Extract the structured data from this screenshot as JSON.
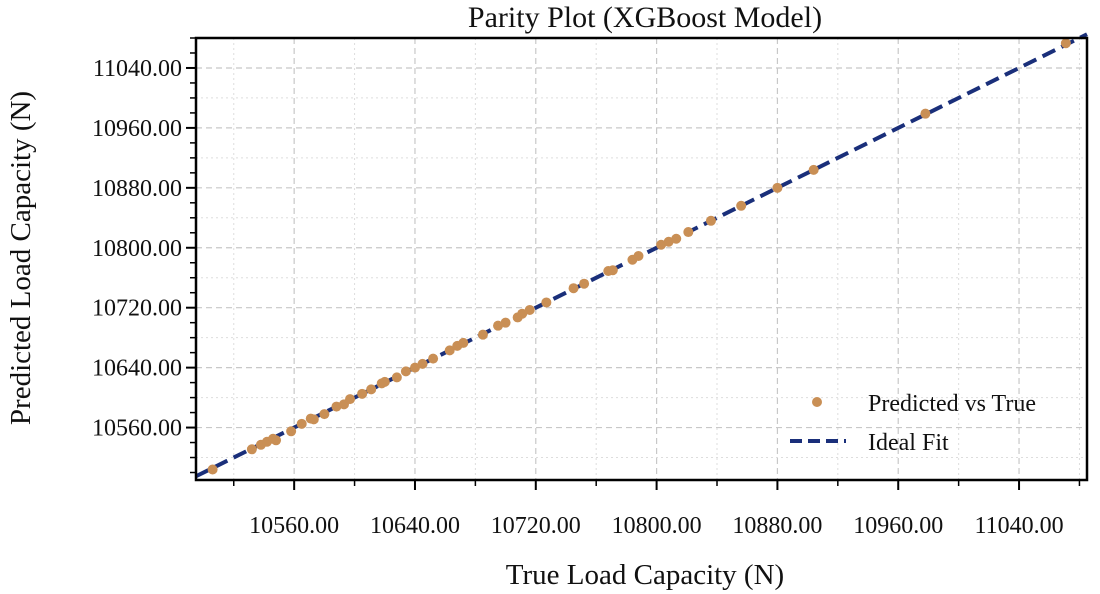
{
  "chart_data": {
    "type": "scatter",
    "title": "Parity Plot (XGBoost Model)",
    "xlabel": "True Load Capacity (N)",
    "ylabel": "Predicted Load Capacity (N)",
    "xlim": [
      10495,
      11085
    ],
    "ylim": [
      10490,
      11080
    ],
    "xticks": [
      10560,
      10640,
      10720,
      10800,
      10880,
      10960,
      11040
    ],
    "yticks": [
      10560,
      10640,
      10720,
      10800,
      10880,
      10960,
      11040
    ],
    "tick_format": "fixed-2",
    "grid": true,
    "legend": {
      "position": "lower-right",
      "entries": [
        "Predicted vs True",
        "Ideal Fit"
      ]
    },
    "colors": {
      "points": "#c98f55",
      "ideal_fit": "#1a2f7a",
      "grid": "#c8c8c8"
    },
    "series": [
      {
        "name": "Predicted vs True",
        "kind": "scatter",
        "points": [
          [
            10506,
            10504
          ],
          [
            10532,
            10531
          ],
          [
            10538,
            10537
          ],
          [
            10542,
            10541
          ],
          [
            10546,
            10545
          ],
          [
            10548,
            10543
          ],
          [
            10558,
            10555
          ],
          [
            10565,
            10565
          ],
          [
            10571,
            10572
          ],
          [
            10573,
            10571
          ],
          [
            10580,
            10578
          ],
          [
            10588,
            10588
          ],
          [
            10593,
            10591
          ],
          [
            10597,
            10598
          ],
          [
            10605,
            10605
          ],
          [
            10611,
            10611
          ],
          [
            10618,
            10619
          ],
          [
            10620,
            10621
          ],
          [
            10628,
            10627
          ],
          [
            10634,
            10635
          ],
          [
            10640,
            10640
          ],
          [
            10645,
            10645
          ],
          [
            10652,
            10652
          ],
          [
            10663,
            10663
          ],
          [
            10668,
            10669
          ],
          [
            10672,
            10673
          ],
          [
            10685,
            10684
          ],
          [
            10695,
            10696
          ],
          [
            10700,
            10700
          ],
          [
            10708,
            10707
          ],
          [
            10711,
            10712
          ],
          [
            10716,
            10717
          ],
          [
            10727,
            10727
          ],
          [
            10745,
            10746
          ],
          [
            10752,
            10752
          ],
          [
            10768,
            10769
          ],
          [
            10771,
            10770
          ],
          [
            10784,
            10784
          ],
          [
            10788,
            10789
          ],
          [
            10803,
            10804
          ],
          [
            10808,
            10808
          ],
          [
            10813,
            10812
          ],
          [
            10821,
            10821
          ],
          [
            10836,
            10836
          ],
          [
            10856,
            10856
          ],
          [
            10880,
            10880
          ],
          [
            10904,
            10904
          ],
          [
            10978,
            10979
          ],
          [
            11071,
            11073
          ]
        ]
      },
      {
        "name": "Ideal Fit",
        "kind": "line",
        "points": [
          [
            10495,
            10495
          ],
          [
            11085,
            11085
          ]
        ]
      }
    ]
  }
}
